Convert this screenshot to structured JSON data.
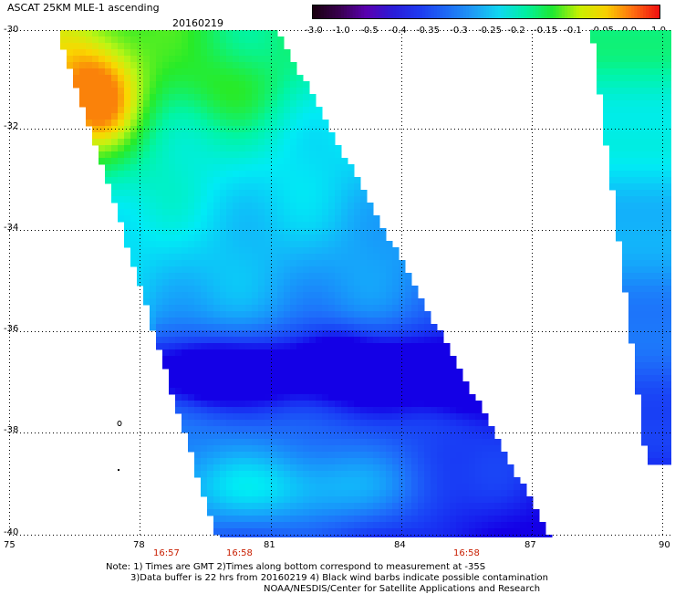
{
  "header": {
    "title": "ASCAT 25KM MLE-1 ascending",
    "date": "20160219"
  },
  "colorbar": {
    "labels": [
      "-3.0",
      "-1.0",
      "-0.5",
      "-0.4",
      "-0.35",
      "-0.3",
      "-0.25",
      "-0.2",
      "-0.15",
      "-0.1",
      "-0.05",
      "0.0",
      "1.0"
    ],
    "colors": [
      "#1a0010",
      "#3a0050",
      "#5a00b0",
      "#2a1cd8",
      "#1f3af0",
      "#1e6af5",
      "#1f9af5",
      "#10d8f0",
      "#00f0a0",
      "#20e830",
      "#c8f000",
      "#f8d000",
      "#ff7010",
      "#f01010"
    ]
  },
  "map": {
    "lat_labels": [
      "-30",
      "-32",
      "-34",
      "-36",
      "-38",
      "-40"
    ],
    "lon_labels": [
      "75",
      "78",
      "81",
      "84",
      "87",
      "90"
    ],
    "pass_times": [
      "16:57",
      "16:58",
      "16:58"
    ],
    "lat_range": [
      -30,
      -40
    ],
    "lon_range": [
      75,
      90
    ]
  },
  "footer": {
    "note_line1": "Note: 1) Times are GMT 2)Times along bottom correspond to measurement at -35S",
    "note_line2": "3)Data buffer is 22 hrs from 20160219 4) Black wind barbs indicate possible contamination",
    "note_line3": "NOAA/NESDIS/Center for Satellite Applications and Research"
  }
}
